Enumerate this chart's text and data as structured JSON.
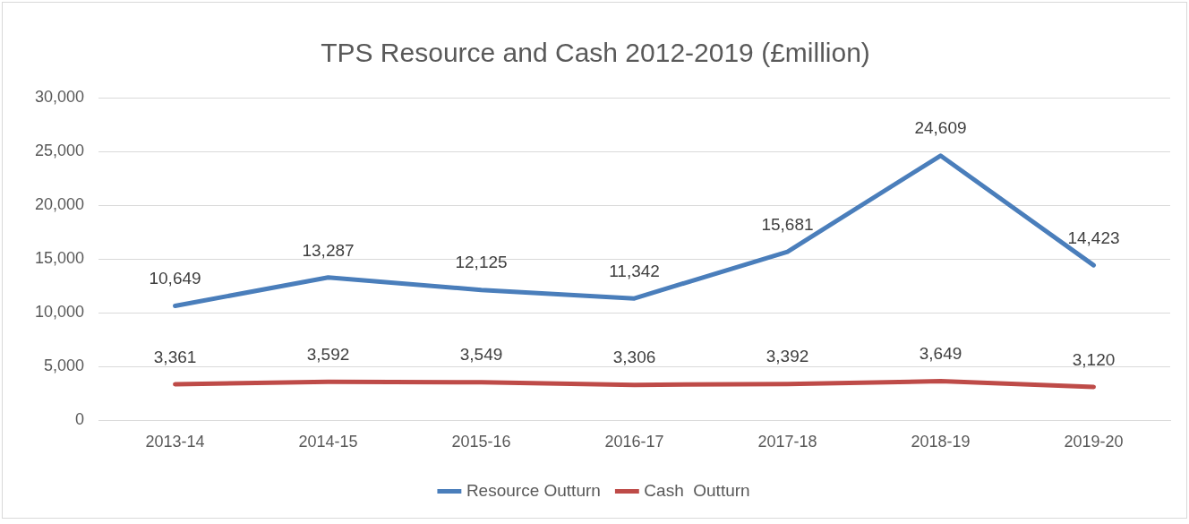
{
  "chart_data": {
    "type": "line",
    "title": "TPS Resource and Cash 2012-2019 (£million)",
    "categories": [
      "2013-14",
      "2014-15",
      "2015-16",
      "2016-17",
      "2017-18",
      "2018-19",
      "2019-20"
    ],
    "series": [
      {
        "name": "Resource Outturn",
        "color": "#4a7ebb",
        "values": [
          10649,
          13287,
          12125,
          11342,
          15681,
          24609,
          14423
        ],
        "value_labels": [
          "10,649",
          "13,287",
          "12,125",
          "11,342",
          "15,681",
          "24,609",
          "14,423"
        ]
      },
      {
        "name": "Cash  Outturn",
        "color": "#be4b48",
        "values": [
          3361,
          3592,
          3549,
          3306,
          3392,
          3649,
          3120
        ],
        "value_labels": [
          "3,361",
          "3,592",
          "3,549",
          "3,306",
          "3,392",
          "3,649",
          "3,120"
        ]
      }
    ],
    "ylim": [
      0,
      30000
    ],
    "yticks": [
      0,
      {
        "value": 5000,
        "label": "5,000"
      },
      {
        "value": 10000,
        "label": "10,000"
      },
      {
        "value": 15000,
        "label": "15,000"
      },
      {
        "value": 20000,
        "label": "20,000"
      },
      {
        "value": 25000,
        "label": "25,000"
      },
      {
        "value": 30000,
        "label": "30,000"
      }
    ],
    "grid": "y",
    "legend": "bottom",
    "marker": "none",
    "line_style": "solid"
  }
}
